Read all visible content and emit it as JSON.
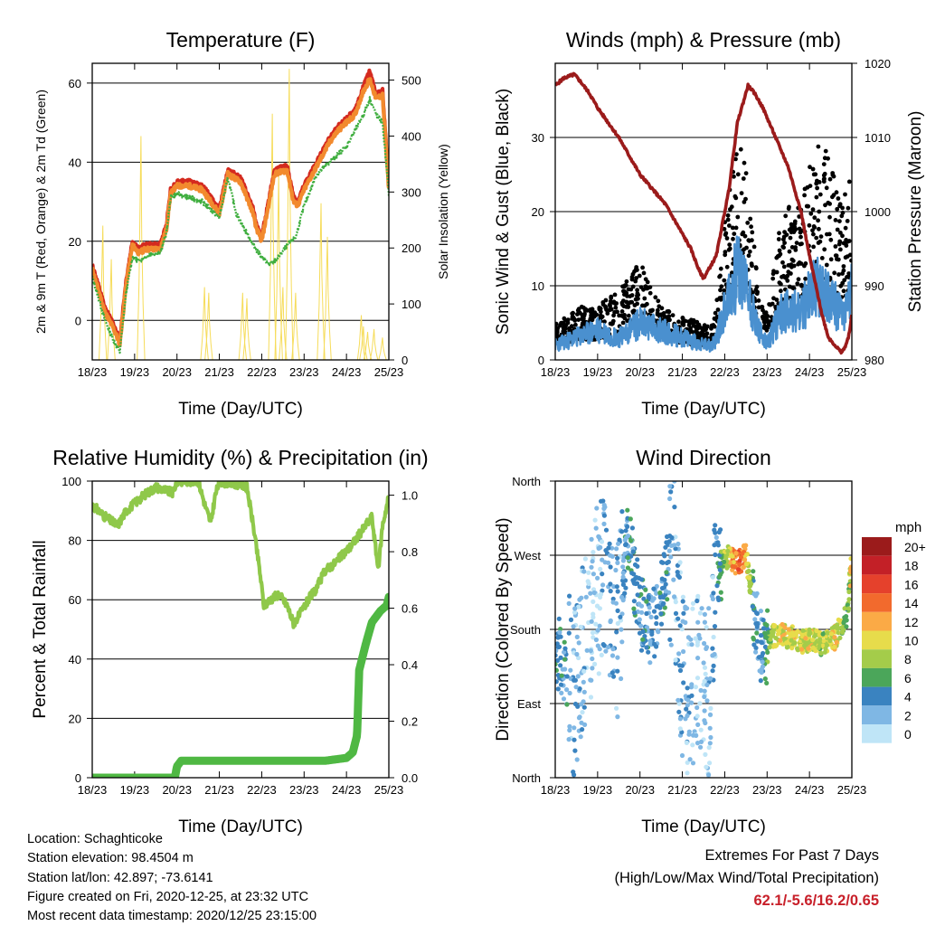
{
  "chart_data": [
    {
      "type": "line",
      "title": "Temperature (F)",
      "xlabel": "Time (Day/UTC)",
      "ylabel": "2m & 9m T (Red, Orange) & 2m Td (Green)",
      "ylabel_right": "Solar Insolation (Yellow)",
      "x_tick_labels": [
        "18/23",
        "19/23",
        "20/23",
        "21/23",
        "22/23",
        "23/23",
        "24/23",
        "25/23"
      ],
      "xlim": [
        0,
        7
      ],
      "ylim": [
        -10,
        65
      ],
      "yticks": [
        0,
        20,
        40,
        60
      ],
      "ylim_right": [
        0,
        530
      ],
      "yticks_right": [
        0,
        100,
        200,
        300,
        400,
        500
      ],
      "grid": "horizontal",
      "colors": {
        "t2m": "#d42a1f",
        "t9m": "#f28a2e",
        "td": "#3fae3f",
        "solar": "#f6dc5a"
      },
      "series": [
        {
          "name": "2m T",
          "x": [
            0,
            0.3,
            0.5,
            0.65,
            0.8,
            0.95,
            1.1,
            1.25,
            1.4,
            1.6,
            1.75,
            1.85,
            2.0,
            2.3,
            2.6,
            2.8,
            3.0,
            3.2,
            3.5,
            3.8,
            3.85,
            4.0,
            4.3,
            4.6,
            4.75,
            4.85,
            5.0,
            5.3,
            5.6,
            5.8,
            6.0,
            6.2,
            6.4,
            6.55,
            6.7,
            6.85,
            7.0
          ],
          "values": [
            13,
            2,
            -2,
            -6,
            9,
            19,
            17,
            18,
            18,
            18,
            23,
            32,
            34,
            34,
            33,
            30,
            27,
            37,
            35,
            27,
            24,
            20,
            37,
            38,
            30,
            29,
            33,
            39,
            45,
            48,
            50,
            52,
            58,
            61,
            56,
            57,
            33
          ]
        },
        {
          "name": "9m T",
          "x": [
            0,
            0.3,
            0.5,
            0.65,
            0.8,
            0.95,
            1.1,
            1.25,
            1.4,
            1.6,
            1.75,
            1.85,
            2.0,
            2.3,
            2.6,
            2.8,
            3.0,
            3.2,
            3.5,
            3.8,
            3.85,
            4.0,
            4.3,
            4.6,
            4.75,
            4.85,
            5.0,
            5.3,
            5.6,
            5.8,
            6.0,
            6.2,
            6.4,
            6.55,
            6.7,
            6.85,
            7.0
          ],
          "values": [
            14,
            3,
            -1,
            -5,
            10,
            20,
            18,
            19,
            19,
            19,
            24,
            33,
            35,
            35,
            34,
            31,
            28,
            38,
            36,
            28,
            25,
            21,
            38,
            39,
            31,
            30,
            34,
            40,
            46,
            49,
            51,
            53,
            59,
            63,
            57,
            58,
            34
          ]
        },
        {
          "name": "2m Td",
          "x": [
            0,
            0.3,
            0.5,
            0.65,
            0.8,
            0.95,
            1.1,
            1.25,
            1.4,
            1.6,
            1.75,
            1.85,
            2.0,
            2.3,
            2.6,
            2.8,
            3.0,
            3.2,
            3.4,
            3.6,
            3.8,
            4.0,
            4.2,
            4.4,
            4.6,
            4.8,
            5.0,
            5.3,
            5.6,
            5.8,
            6.0,
            6.2,
            6.4,
            6.55,
            6.7,
            6.85,
            7.0
          ],
          "values": [
            11,
            0,
            -5,
            -8,
            7,
            16,
            15,
            16,
            17,
            17,
            22,
            31,
            32,
            31,
            30,
            28,
            26,
            36,
            27,
            23,
            19,
            16,
            14,
            16,
            19,
            21,
            29,
            37,
            40,
            42,
            44,
            48,
            52,
            56,
            52,
            50,
            32
          ]
        },
        {
          "name": "Solar Insolation",
          "axis": "right",
          "x_peaks": [
            0.25,
            0.45,
            1.15,
            2.65,
            2.75,
            3.55,
            3.65,
            4.25,
            4.4,
            4.5,
            4.65,
            4.8,
            5.4,
            5.55,
            6.35,
            6.4,
            6.5,
            6.65,
            6.85
          ],
          "peaks": [
            240,
            180,
            400,
            130,
            120,
            120,
            110,
            440,
            330,
            130,
            520,
            120,
            280,
            220,
            80,
            60,
            50,
            55,
            40
          ]
        }
      ]
    },
    {
      "type": "scatter",
      "title": "Winds (mph) & Pressure (mb)",
      "xlabel": "Time (Day/UTC)",
      "ylabel": "Sonic Wind & Gust (Blue, Black)",
      "ylabel_right": "Station Pressure (Maroon)",
      "x_tick_labels": [
        "18/23",
        "19/23",
        "20/23",
        "21/23",
        "22/23",
        "23/23",
        "24/23",
        "25/23"
      ],
      "xlim": [
        0,
        7
      ],
      "ylim": [
        0,
        40
      ],
      "yticks": [
        0,
        10,
        20,
        30
      ],
      "ylim_right": [
        980,
        1020
      ],
      "yticks_right": [
        980,
        990,
        1000,
        1010,
        1020
      ],
      "grid": "horizontal",
      "colors": {
        "wind": "#4a90cf",
        "gust": "#000000",
        "pressure": "#9b1b1b"
      },
      "series": [
        {
          "name": "Station Pressure",
          "axis": "right",
          "x": [
            0,
            0.2,
            0.45,
            0.6,
            0.8,
            1.0,
            1.5,
            2.0,
            2.3,
            2.6,
            2.9,
            3.2,
            3.4,
            3.5,
            3.6,
            3.8,
            4.1,
            4.3,
            4.55,
            4.7,
            4.9,
            5.2,
            5.5,
            5.8,
            6.0,
            6.15,
            6.3,
            6.45,
            6.6,
            6.75,
            6.82,
            6.92,
            7.0
          ],
          "values": [
            1017,
            1018,
            1018.5,
            1017.5,
            1016,
            1014,
            1010,
            1005,
            1003,
            1001,
            998,
            995,
            992,
            991,
            992,
            994,
            1003,
            1012,
            1017,
            1016,
            1014,
            1010,
            1006,
            1000,
            994,
            990,
            986,
            983,
            982,
            981,
            981.5,
            983,
            986
          ]
        },
        {
          "name": "Wind",
          "x": [
            0,
            0.5,
            1.0,
            1.5,
            2.0,
            2.5,
            3.0,
            3.5,
            3.7,
            3.8,
            4.0,
            4.3,
            4.5,
            4.8,
            5.0,
            5.3,
            5.5,
            5.8,
            6.0,
            6.3,
            6.5,
            6.8,
            7.0
          ],
          "values": [
            2,
            3,
            4,
            3,
            5,
            4,
            3,
            2,
            2,
            3,
            7,
            12,
            10,
            4,
            2,
            6,
            7,
            6,
            9,
            10,
            8,
            6,
            9
          ]
        },
        {
          "name": "Gust",
          "x": [
            0,
            0.5,
            1.0,
            1.5,
            2.0,
            2.5,
            3.0,
            3.5,
            3.7,
            3.8,
            4.0,
            4.3,
            4.5,
            4.8,
            5.0,
            5.3,
            5.5,
            5.8,
            6.0,
            6.3,
            6.5,
            6.8,
            7.0
          ],
          "values": [
            4,
            6,
            6,
            8,
            11,
            6,
            5,
            4,
            4,
            6,
            16,
            25,
            22,
            8,
            5,
            15,
            18,
            17,
            22,
            26,
            22,
            18,
            22
          ]
        }
      ]
    },
    {
      "type": "line",
      "title": "Relative Humidity (%) & Precipitation (in)",
      "xlabel": "Time (Day/UTC)",
      "ylabel": "Percent & Total Rainfall",
      "x_tick_labels": [
        "18/23",
        "19/23",
        "20/23",
        "21/23",
        "22/23",
        "23/23",
        "24/23",
        "25/23"
      ],
      "xlim": [
        0,
        7
      ],
      "ylim": [
        0,
        100
      ],
      "yticks": [
        0,
        20,
        40,
        60,
        80,
        100
      ],
      "ylim_right": [
        0,
        1.05
      ],
      "yticks_right": [
        "0.0",
        "0.2",
        "0.4",
        "0.6",
        "0.8",
        "1.0"
      ],
      "grid": "horizontal",
      "colors": {
        "rh": "#8fc84a",
        "precip": "#4fb843"
      },
      "series": [
        {
          "name": "Relative Humidity",
          "x": [
            0,
            0.3,
            0.6,
            0.8,
            1.2,
            1.5,
            1.9,
            2.0,
            2.5,
            2.7,
            2.8,
            2.9,
            3.0,
            3.3,
            3.5,
            3.65,
            3.8,
            3.95,
            4.05,
            4.2,
            4.4,
            4.6,
            4.75,
            4.9,
            5.1,
            5.3,
            5.5,
            5.7,
            5.9,
            6.1,
            6.3,
            6.45,
            6.6,
            6.75,
            6.85,
            7.0
          ],
          "values": [
            92,
            88,
            85,
            90,
            95,
            98,
            96,
            100,
            100,
            90,
            86,
            95,
            100,
            99,
            99,
            98,
            85,
            70,
            58,
            60,
            62,
            58,
            52,
            55,
            60,
            64,
            70,
            72,
            75,
            78,
            82,
            85,
            88,
            70,
            85,
            95
          ]
        },
        {
          "name": "Precipitation",
          "axis": "right",
          "x": [
            0,
            1.0,
            1.95,
            2.0,
            2.1,
            5.5,
            6.0,
            6.15,
            6.25,
            6.3,
            6.45,
            6.6,
            6.8,
            6.95,
            7.0
          ],
          "values": [
            0,
            0,
            0,
            0.04,
            0.06,
            0.06,
            0.07,
            0.09,
            0.15,
            0.38,
            0.47,
            0.55,
            0.59,
            0.61,
            0.64
          ]
        }
      ]
    },
    {
      "type": "scatter",
      "title": "Wind Direction",
      "xlabel": "Time (Day/UTC)",
      "ylabel": "Direction (Colored By Speed)",
      "x_tick_labels": [
        "18/23",
        "19/23",
        "20/23",
        "21/23",
        "22/23",
        "23/23",
        "24/23",
        "25/23"
      ],
      "xlim": [
        0,
        7
      ],
      "ylim": [
        0,
        360
      ],
      "y_tick_labels": [
        "North",
        "East",
        "South",
        "West",
        "North"
      ],
      "grid": "horizontal",
      "legend_title": "mph",
      "legend_labels": [
        "20+",
        "18",
        "16",
        "14",
        "12",
        "10",
        "8",
        "6",
        "4",
        "2",
        "0"
      ],
      "legend_colors": [
        "#9b1b1b",
        "#c32027",
        "#e5412c",
        "#f26a2d",
        "#fbaa46",
        "#e7dc4b",
        "#a4cc4a",
        "#4ba65a",
        "#3a83c0",
        "#7fb7e4",
        "#bfe5f7"
      ],
      "series": [
        {
          "name": "Direction",
          "x": [
            0.1,
            0.3,
            0.5,
            0.8,
            1.0,
            1.2,
            1.5,
            1.7,
            2.0,
            2.3,
            2.6,
            2.8,
            3.0,
            3.4,
            3.6,
            3.8,
            4.0,
            4.3,
            4.5,
            4.7,
            4.9,
            5.1,
            5.3,
            5.6,
            5.9,
            6.1,
            6.3,
            6.6,
            6.9,
            7.0
          ],
          "values": [
            150,
            130,
            95,
            200,
            220,
            260,
            170,
            300,
            200,
            180,
            250,
            280,
            110,
            120,
            90,
            250,
            270,
            260,
            270,
            200,
            150,
            170,
            175,
            170,
            165,
            168,
            160,
            170,
            200,
            270
          ],
          "speeds": [
            4,
            3,
            2,
            1,
            1,
            3,
            2,
            4,
            4,
            3,
            4,
            2,
            2,
            1,
            1,
            3,
            8,
            14,
            12,
            4,
            3,
            8,
            10,
            9,
            10,
            9,
            8,
            10,
            6,
            12
          ]
        }
      ]
    }
  ],
  "footer": {
    "location": "Location: Schaghticoke",
    "elevation": "Station elevation: 98.4504 m",
    "latlon": "Station lat/lon: 42.897; -73.6141",
    "created": "Figure created on Fri, 2020-12-25, at 23:32 UTC",
    "recent": "Most recent data timestamp: 2020/12/25 23:15:00"
  },
  "extremes": {
    "title": "Extremes For Past 7 Days",
    "subtitle": "(High/Low/Max Wind/Total Precipitation)",
    "values": "62.1/-5.6/16.2/0.65"
  }
}
